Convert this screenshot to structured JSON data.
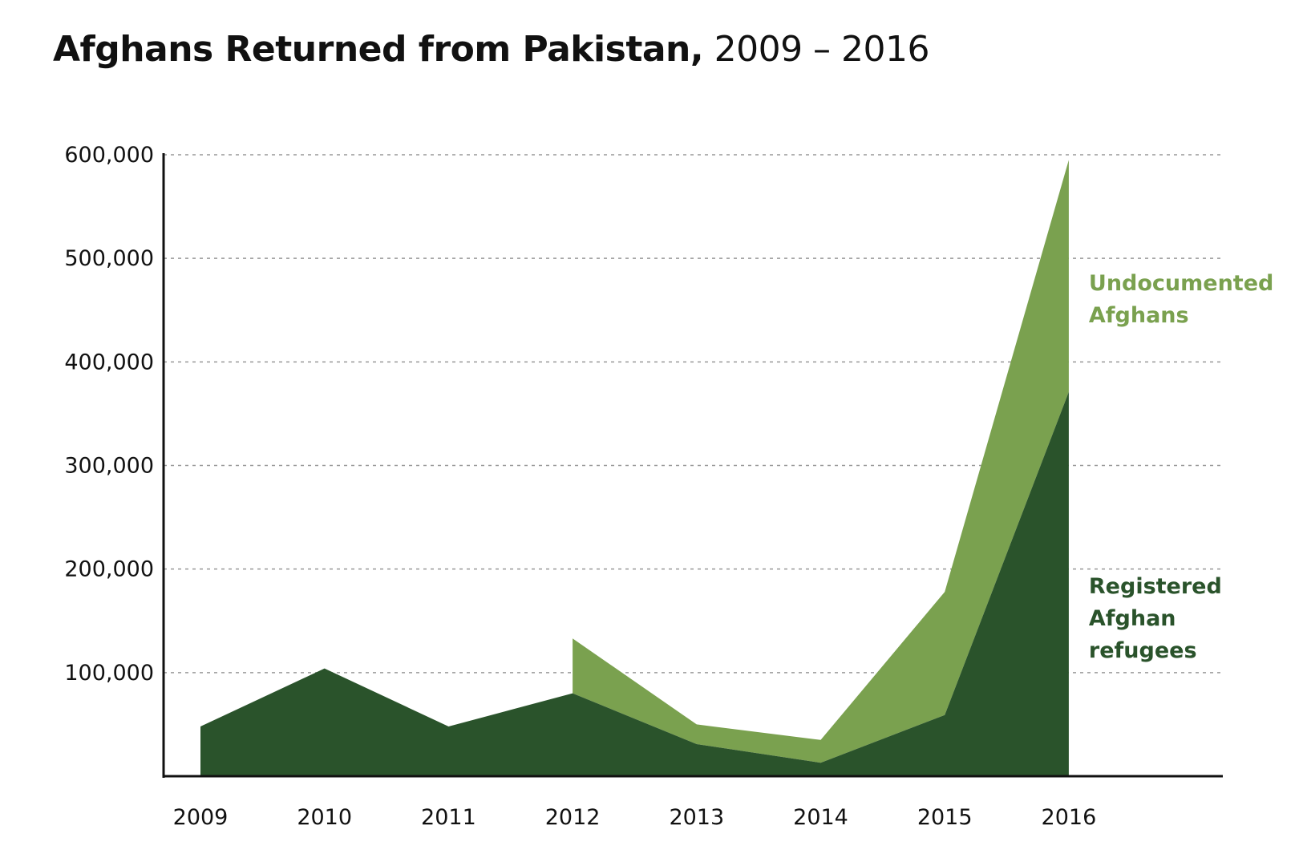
{
  "chart_data": {
    "type": "area",
    "stacked": true,
    "title": "Afghans Returned from Pakistan,",
    "subtitle": "2009 – 2016",
    "xlabel": "",
    "ylabel": "",
    "categories": [
      "2009",
      "2010",
      "2011",
      "2012",
      "2013",
      "2014",
      "2015",
      "2016"
    ],
    "ylim": [
      0,
      600000
    ],
    "yticks": [
      100000,
      200000,
      300000,
      400000,
      500000,
      600000
    ],
    "ytick_labels": [
      "100,000",
      "200,000",
      "300,000",
      "400,000",
      "500,000",
      "600,000"
    ],
    "grid": "horizontal dotted",
    "series": [
      {
        "name": "Registered Afghan refugees",
        "label_lines": [
          "Registered",
          "Afghan",
          "refugees"
        ],
        "color": "#2a532b",
        "values": [
          48000,
          104000,
          48000,
          80000,
          31000,
          13000,
          59000,
          371000
        ]
      },
      {
        "name": "Undocumented Afghans",
        "label_lines": [
          "Undocumented",
          "Afghans"
        ],
        "color": "#7aa14f",
        "values": [
          null,
          null,
          null,
          53000,
          19000,
          22000,
          119000,
          224000
        ]
      }
    ],
    "legend": "right, inline labels"
  }
}
